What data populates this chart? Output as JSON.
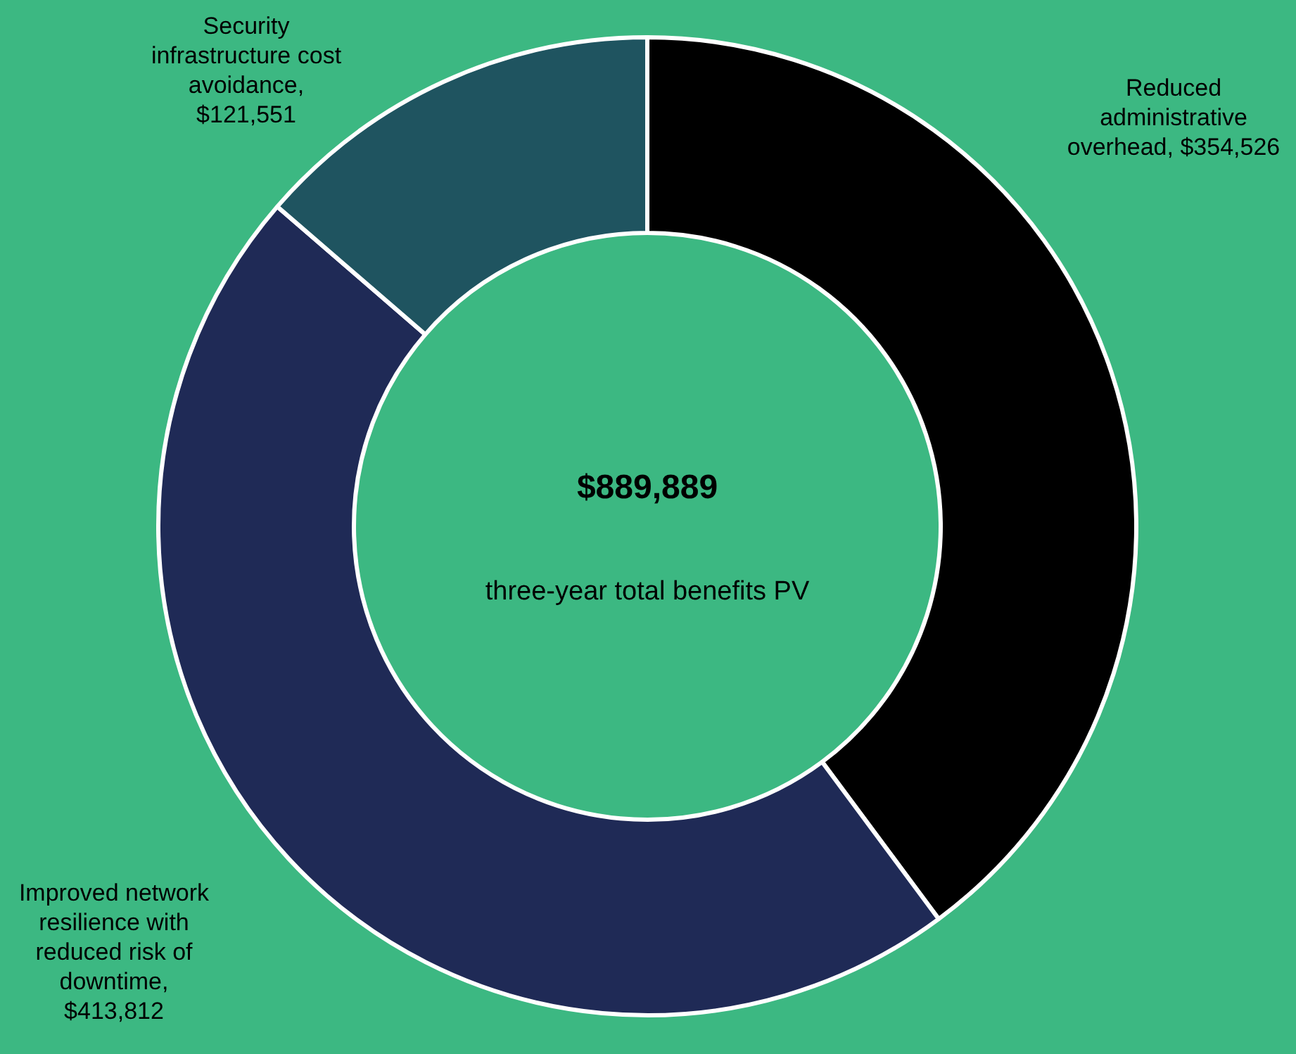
{
  "chart_data": {
    "type": "donut",
    "categories": [
      "Reduced administrative overhead",
      "Improved network resilience with reduced risk of downtime",
      "Security infrastructure cost avoidance"
    ],
    "values": [
      354526,
      413812,
      121551
    ],
    "value_labels": [
      ", $354,526",
      ", $413,812",
      ", $121,551"
    ],
    "colors": [
      "#000000",
      "#1f2a56",
      "#1f5460"
    ],
    "annotations": [
      "$889,889",
      "three-year total benefits PV"
    ],
    "legend": false
  }
}
